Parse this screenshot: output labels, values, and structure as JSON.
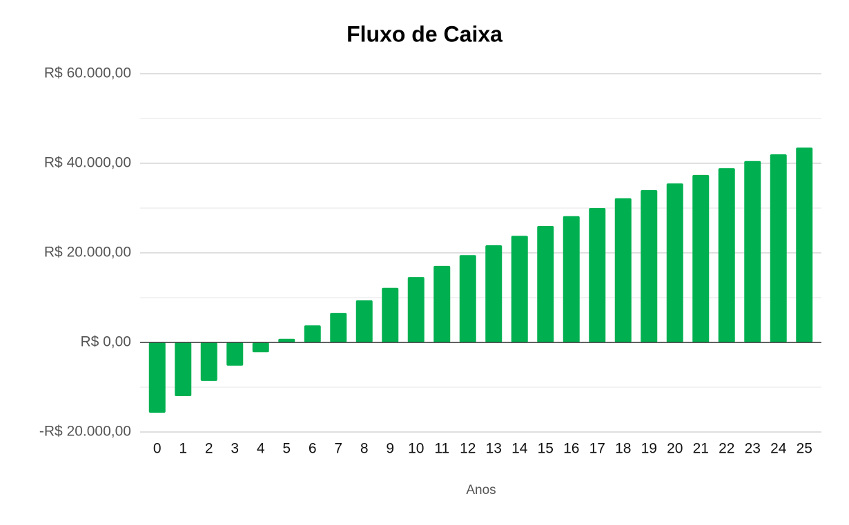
{
  "chart_data": {
    "type": "bar",
    "title": "Fluxo de Caixa",
    "x_label": "Anos",
    "categories": [
      "0",
      "1",
      "2",
      "3",
      "4",
      "5",
      "6",
      "7",
      "8",
      "9",
      "10",
      "11",
      "12",
      "13",
      "14",
      "15",
      "16",
      "17",
      "18",
      "19",
      "20",
      "21",
      "22",
      "23",
      "24",
      "25"
    ],
    "values": [
      -15700,
      -12000,
      -8600,
      -5200,
      -2200,
      800,
      3800,
      6600,
      9400,
      12200,
      14600,
      17100,
      19500,
      21700,
      23800,
      26000,
      28200,
      30000,
      32200,
      34000,
      35500,
      37400,
      38900,
      40500,
      42000,
      43500
    ],
    "color": "#00b050",
    "ylim": [
      -20000,
      60000
    ],
    "yticks": [
      {
        "value": -20000,
        "label": "-R$ 20.000,00"
      },
      {
        "value": 0,
        "label": "R$ 0,00"
      },
      {
        "value": 20000,
        "label": "R$ 20.000,00"
      },
      {
        "value": 40000,
        "label": "R$ 40.000,00"
      },
      {
        "value": 60000,
        "label": "R$ 60.000,00"
      }
    ],
    "minor_yticks": [
      -10000,
      10000,
      30000,
      50000
    ],
    "grid": true
  }
}
